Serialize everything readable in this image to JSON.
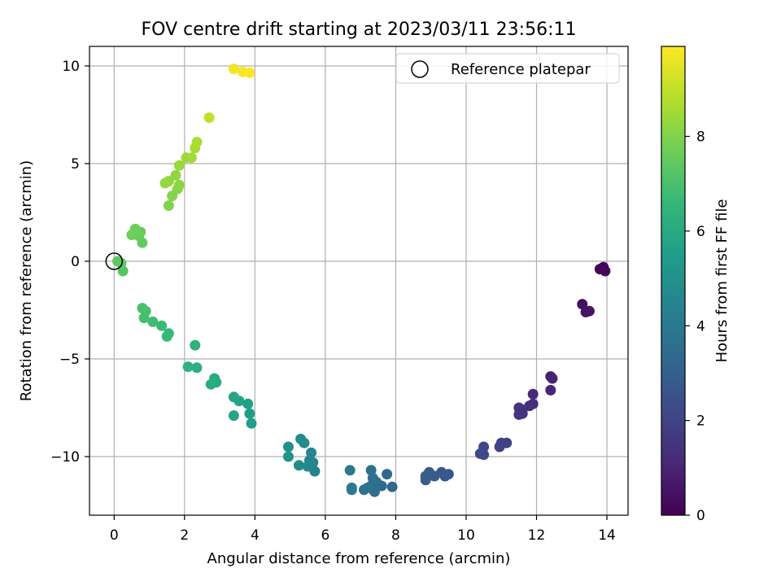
{
  "chart_data": {
    "type": "scatter",
    "title": "FOV centre drift starting at 2023/03/11 23:56:11",
    "xlabel": "Angular distance from reference (arcmin)",
    "ylabel": "Rotation from reference (arcmin)",
    "xlim": [
      -0.7,
      14.6
    ],
    "ylim": [
      -13.0,
      11.0
    ],
    "xticks": [
      0,
      2,
      4,
      6,
      8,
      10,
      12,
      14
    ],
    "yticks": [
      -10,
      -5,
      0,
      5,
      10
    ],
    "grid": true,
    "legend": {
      "location": "top-right",
      "entries": [
        "Reference platepar"
      ]
    },
    "reference_point": {
      "x": 0,
      "y": 0
    },
    "colorbar": {
      "label": "Hours from first FF file",
      "colormap": "viridis",
      "range": [
        0,
        9.9
      ],
      "ticks": [
        0,
        2,
        4,
        6,
        8
      ]
    },
    "series": [
      {
        "points": [
          {
            "x": 13.9,
            "y": -0.3,
            "c": 0.05
          },
          {
            "x": 13.95,
            "y": -0.5,
            "c": 0.1
          },
          {
            "x": 13.8,
            "y": -0.4,
            "c": 0.15
          },
          {
            "x": 13.9,
            "y": -0.35,
            "c": 0.2
          },
          {
            "x": 13.3,
            "y": -2.2,
            "c": 0.4
          },
          {
            "x": 13.4,
            "y": -2.6,
            "c": 0.5
          },
          {
            "x": 13.5,
            "y": -2.55,
            "c": 0.55
          },
          {
            "x": 12.4,
            "y": -5.9,
            "c": 0.9
          },
          {
            "x": 12.45,
            "y": -6.0,
            "c": 0.95
          },
          {
            "x": 12.4,
            "y": -6.6,
            "c": 1.05
          },
          {
            "x": 11.9,
            "y": -6.8,
            "c": 1.2
          },
          {
            "x": 11.9,
            "y": -7.3,
            "c": 1.3
          },
          {
            "x": 11.8,
            "y": -7.4,
            "c": 1.35
          },
          {
            "x": 11.5,
            "y": -7.5,
            "c": 1.45
          },
          {
            "x": 11.6,
            "y": -7.8,
            "c": 1.5
          },
          {
            "x": 11.5,
            "y": -7.85,
            "c": 1.55
          },
          {
            "x": 11.6,
            "y": -7.6,
            "c": 1.5
          },
          {
            "x": 11.15,
            "y": -9.3,
            "c": 1.85
          },
          {
            "x": 11.0,
            "y": -9.3,
            "c": 1.9
          },
          {
            "x": 10.95,
            "y": -9.5,
            "c": 1.95
          },
          {
            "x": 10.5,
            "y": -9.5,
            "c": 2.1
          },
          {
            "x": 10.5,
            "y": -9.9,
            "c": 2.15
          },
          {
            "x": 10.4,
            "y": -9.85,
            "c": 2.2
          },
          {
            "x": 9.4,
            "y": -11.0,
            "c": 2.6
          },
          {
            "x": 9.5,
            "y": -10.9,
            "c": 2.65
          },
          {
            "x": 9.3,
            "y": -10.8,
            "c": 2.7
          },
          {
            "x": 9.4,
            "y": -11.0,
            "c": 2.75
          },
          {
            "x": 9.1,
            "y": -11.0,
            "c": 2.8
          },
          {
            "x": 8.95,
            "y": -10.8,
            "c": 2.85
          },
          {
            "x": 8.85,
            "y": -11.0,
            "c": 2.9
          },
          {
            "x": 8.85,
            "y": -11.2,
            "c": 2.95
          },
          {
            "x": 7.9,
            "y": -11.55,
            "c": 3.3
          },
          {
            "x": 7.75,
            "y": -10.9,
            "c": 3.35
          },
          {
            "x": 7.6,
            "y": -11.5,
            "c": 3.4
          },
          {
            "x": 7.45,
            "y": -11.3,
            "c": 3.5
          },
          {
            "x": 7.4,
            "y": -11.8,
            "c": 3.55
          },
          {
            "x": 7.3,
            "y": -11.5,
            "c": 3.6
          },
          {
            "x": 7.35,
            "y": -11.1,
            "c": 3.65
          },
          {
            "x": 7.3,
            "y": -10.7,
            "c": 3.7
          },
          {
            "x": 7.2,
            "y": -11.6,
            "c": 3.75
          },
          {
            "x": 7.1,
            "y": -11.7,
            "c": 3.8
          },
          {
            "x": 6.75,
            "y": -11.7,
            "c": 3.9
          },
          {
            "x": 6.75,
            "y": -11.6,
            "c": 4.0
          },
          {
            "x": 6.7,
            "y": -10.7,
            "c": 4.05
          },
          {
            "x": 5.7,
            "y": -10.75,
            "c": 4.4
          },
          {
            "x": 5.65,
            "y": -10.3,
            "c": 4.5
          },
          {
            "x": 5.6,
            "y": -9.8,
            "c": 4.55
          },
          {
            "x": 5.55,
            "y": -10.2,
            "c": 4.6
          },
          {
            "x": 5.5,
            "y": -10.5,
            "c": 4.65
          },
          {
            "x": 5.4,
            "y": -9.3,
            "c": 4.75
          },
          {
            "x": 5.3,
            "y": -9.1,
            "c": 4.8
          },
          {
            "x": 5.25,
            "y": -10.45,
            "c": 4.85
          },
          {
            "x": 4.95,
            "y": -9.5,
            "c": 5.0
          },
          {
            "x": 4.95,
            "y": -10.0,
            "c": 5.05
          },
          {
            "x": 3.9,
            "y": -8.3,
            "c": 5.5
          },
          {
            "x": 3.85,
            "y": -7.8,
            "c": 5.55
          },
          {
            "x": 3.8,
            "y": -7.3,
            "c": 5.6
          },
          {
            "x": 3.55,
            "y": -7.15,
            "c": 5.7
          },
          {
            "x": 3.4,
            "y": -6.95,
            "c": 5.75
          },
          {
            "x": 3.4,
            "y": -7.9,
            "c": 5.8
          },
          {
            "x": 2.9,
            "y": -6.2,
            "c": 6.0
          },
          {
            "x": 2.85,
            "y": -6.0,
            "c": 6.05
          },
          {
            "x": 2.75,
            "y": -6.3,
            "c": 6.1
          },
          {
            "x": 2.35,
            "y": -5.45,
            "c": 6.25
          },
          {
            "x": 2.3,
            "y": -4.3,
            "c": 6.3
          },
          {
            "x": 2.1,
            "y": -5.4,
            "c": 6.35
          },
          {
            "x": 1.55,
            "y": -3.7,
            "c": 6.6
          },
          {
            "x": 1.5,
            "y": -3.85,
            "c": 6.65
          },
          {
            "x": 1.35,
            "y": -3.3,
            "c": 6.7
          },
          {
            "x": 1.1,
            "y": -3.1,
            "c": 6.8
          },
          {
            "x": 0.9,
            "y": -2.55,
            "c": 6.9
          },
          {
            "x": 0.85,
            "y": -2.9,
            "c": 6.95
          },
          {
            "x": 0.8,
            "y": -2.4,
            "c": 7.0
          },
          {
            "x": 0.25,
            "y": -0.5,
            "c": 7.25
          },
          {
            "x": 0.2,
            "y": -0.1,
            "c": 7.3
          },
          {
            "x": 0.1,
            "y": 0.0,
            "c": 7.35
          },
          {
            "x": 0.8,
            "y": 0.95,
            "c": 7.5
          },
          {
            "x": 0.7,
            "y": 1.3,
            "c": 7.55
          },
          {
            "x": 0.75,
            "y": 1.5,
            "c": 7.6
          },
          {
            "x": 0.6,
            "y": 1.65,
            "c": 7.65
          },
          {
            "x": 0.5,
            "y": 1.35,
            "c": 7.7
          },
          {
            "x": 1.55,
            "y": 2.85,
            "c": 8.0
          },
          {
            "x": 1.65,
            "y": 3.35,
            "c": 8.05
          },
          {
            "x": 1.8,
            "y": 3.7,
            "c": 8.1
          },
          {
            "x": 1.85,
            "y": 3.9,
            "c": 8.15
          },
          {
            "x": 1.55,
            "y": 4.1,
            "c": 8.2
          },
          {
            "x": 1.75,
            "y": 4.4,
            "c": 8.25
          },
          {
            "x": 1.45,
            "y": 4.0,
            "c": 8.3
          },
          {
            "x": 1.85,
            "y": 4.9,
            "c": 8.4
          },
          {
            "x": 2.05,
            "y": 5.3,
            "c": 8.45
          },
          {
            "x": 2.2,
            "y": 5.3,
            "c": 8.5
          },
          {
            "x": 2.3,
            "y": 5.8,
            "c": 8.6
          },
          {
            "x": 2.35,
            "y": 6.1,
            "c": 8.65
          },
          {
            "x": 2.7,
            "y": 7.35,
            "c": 9.0
          },
          {
            "x": 3.4,
            "y": 9.85,
            "c": 9.7
          },
          {
            "x": 3.65,
            "y": 9.7,
            "c": 9.8
          },
          {
            "x": 3.85,
            "y": 9.65,
            "c": 9.85
          }
        ]
      }
    ]
  }
}
